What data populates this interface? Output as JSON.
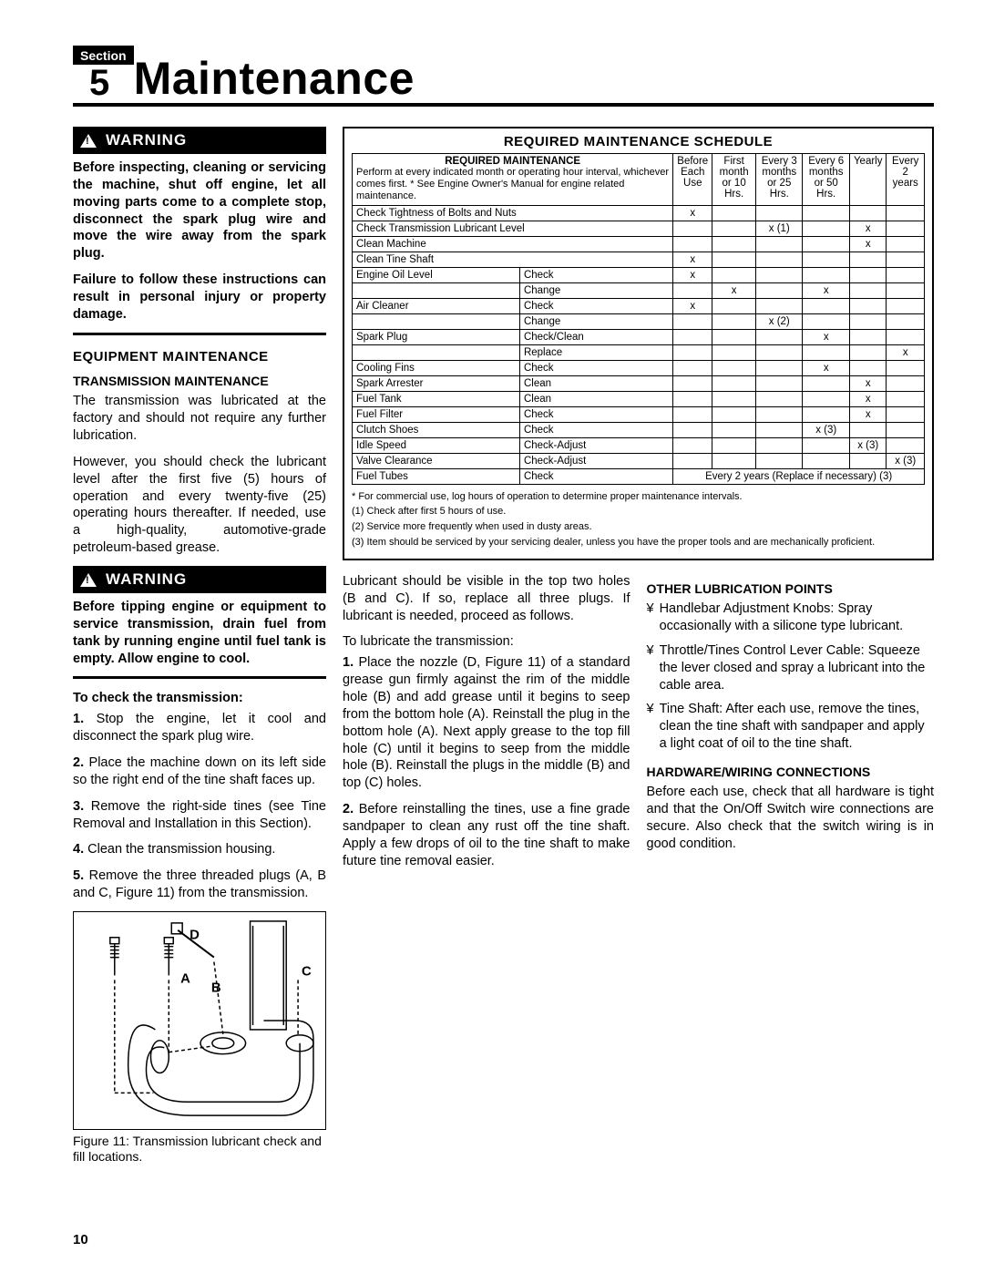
{
  "section": {
    "label": "Section",
    "number": "5",
    "title": "Maintenance"
  },
  "warnings": [
    {
      "label": "WARNING",
      "paras": [
        "Before inspecting, cleaning or servicing the machine, shut off engine, let all moving parts come to a complete stop, disconnect the spark plug wire and move the wire away from the spark plug.",
        "Failure to follow these instructions can result in personal injury or property damage."
      ]
    },
    {
      "label": "WARNING",
      "paras": [
        "Before tipping engine or equipment to service transmission, drain fuel from tank by running engine until fuel tank is empty.  Allow engine to cool."
      ]
    }
  ],
  "equip_h": "EQUIPMENT MAINTENANCE",
  "trans_h": "TRANSMISSION MAINTENANCE",
  "trans_p1": "The transmission was lubricated at the factory and should not require any further lubrication.",
  "trans_p2": "However, you should check the lubricant level after the first five (5) hours of operation and every twenty-five (25) operating hours thereafter.  If needed, use a high-quality, automotive-grade petroleum-based grease.",
  "check_h": "To check the transmission:",
  "steps": [
    {
      "n": "1.",
      "t": "Stop the engine, let it cool and disconnect the spark plug wire."
    },
    {
      "n": "2.",
      "t": "Place the machine down on its left side so the right end of the tine shaft faces up."
    },
    {
      "n": "3.",
      "t": "Remove the right-side tines (see Tine Removal and Installation in this Section)."
    },
    {
      "n": "4.",
      "t": "Clean the transmission housing."
    },
    {
      "n": "5.",
      "t": "Remove the three threaded plugs (A, B and C, Figure 11) from the transmission."
    }
  ],
  "fig_caption": "Figure 11: Transmission lubricant check and fill locations.",
  "fig_labels": {
    "A": "A",
    "B": "B",
    "C": "C",
    "D": "D"
  },
  "schedule": {
    "title": "REQUIRED MAINTENANCE SCHEDULE",
    "req_head": "REQUIRED MAINTENANCE",
    "req_desc": "Perform at every indicated month or operating hour interval, whichever comes first.  * See Engine Owner's Manual for engine related maintenance.",
    "cols": [
      {
        "l1": "Before",
        "l2": "Each",
        "l3": "Use"
      },
      {
        "l1": "First",
        "l2": "month",
        "l3": "or 10 Hrs."
      },
      {
        "l1": "Every 3",
        "l2": "months",
        "l3": "or 25 Hrs."
      },
      {
        "l1": "Every 6",
        "l2": "months",
        "l3": "or 50 Hrs."
      },
      {
        "l1": "Yearly",
        "l2": "",
        "l3": ""
      },
      {
        "l1": "Every",
        "l2": "2 years",
        "l3": ""
      }
    ],
    "rows": [
      {
        "a": "Check Tightness of Bolts and Nuts",
        "b": "",
        "m": [
          "x",
          "",
          "",
          "",
          "",
          ""
        ]
      },
      {
        "a": "Check Transmission Lubricant Level",
        "b": "",
        "m": [
          "",
          "",
          "x (1)",
          "",
          "x",
          ""
        ]
      },
      {
        "a": "Clean Machine",
        "b": "",
        "m": [
          "",
          "",
          "",
          "",
          "x",
          ""
        ]
      },
      {
        "a": "Clean Tine Shaft",
        "b": "",
        "m": [
          "x",
          "",
          "",
          "",
          "",
          ""
        ]
      },
      {
        "a": "Engine Oil Level",
        "b": "Check",
        "m": [
          "x",
          "",
          "",
          "",
          "",
          ""
        ]
      },
      {
        "a": "",
        "b": "Change",
        "m": [
          "",
          "x",
          "",
          "x",
          "",
          ""
        ]
      },
      {
        "a": "Air Cleaner",
        "b": "Check",
        "m": [
          "x",
          "",
          "",
          "",
          "",
          ""
        ]
      },
      {
        "a": "",
        "b": "Change",
        "m": [
          "",
          "",
          "x (2)",
          "",
          "",
          ""
        ]
      },
      {
        "a": "Spark Plug",
        "b": "Check/Clean",
        "m": [
          "",
          "",
          "",
          "x",
          "",
          ""
        ]
      },
      {
        "a": "",
        "b": "Replace",
        "m": [
          "",
          "",
          "",
          "",
          "",
          "x"
        ]
      },
      {
        "a": "Cooling Fins",
        "b": "Check",
        "m": [
          "",
          "",
          "",
          "x",
          "",
          ""
        ]
      },
      {
        "a": "Spark Arrester",
        "b": "Clean",
        "m": [
          "",
          "",
          "",
          "",
          "x",
          ""
        ]
      },
      {
        "a": "Fuel Tank",
        "b": "Clean",
        "m": [
          "",
          "",
          "",
          "",
          "x",
          ""
        ]
      },
      {
        "a": "Fuel Filter",
        "b": "Check",
        "m": [
          "",
          "",
          "",
          "",
          "x",
          ""
        ]
      },
      {
        "a": "Clutch Shoes",
        "b": "Check",
        "m": [
          "",
          "",
          "",
          "x (3)",
          "",
          ""
        ]
      },
      {
        "a": "Idle Speed",
        "b": "Check-Adjust",
        "m": [
          "",
          "",
          "",
          "",
          "x (3)",
          ""
        ]
      },
      {
        "a": "Valve Clearance",
        "b": "Check-Adjust",
        "m": [
          "",
          "",
          "",
          "",
          "",
          "x (3)"
        ]
      }
    ],
    "tubes_row": {
      "a": "Fuel Tubes",
      "b": "Check",
      "span": "Every 2 years (Replace if necessary) (3)"
    },
    "notes": [
      "*  For commercial use, log hours of operation to determine proper maintenance intervals.",
      "(1) Check after first 5 hours of use.",
      "(2) Service more frequently when used in dusty areas.",
      "(3) Item should be serviced by your servicing dealer, unless you have the proper tools and are mechanically proficient."
    ]
  },
  "mid_p": "Lubricant should be visible in the top two holes (B and C).  If so, replace all three plugs. If lubricant is needed, proceed as follows.",
  "lube_h": "To lubricate the transmission:",
  "lube1": "Place the nozzle (D, Figure 11) of a standard grease gun firmly against the rim of the middle hole (B) and add grease until it begins to seep from the bottom hole (A).  Reinstall the plug in the bottom hole (A).  Next apply grease to the top fill hole (C) until it begins to seep from the middle hole (B).  Reinstall the plugs in the middle (B) and top (C) holes.",
  "lube2": "Before reinstalling the tines, use a fine grade sandpaper to clean any rust off the tine shaft.  Apply a few drops of oil to the tine shaft to make future tine removal easier.",
  "other_h": "OTHER LUBRICATION POINTS",
  "other": [
    "Handlebar Adjustment Knobs:  Spray occasionally with a silicone type lubricant.",
    "Throttle/Tines Control Lever Cable:  Squeeze the lever closed and spray a lubricant into the cable area.",
    "Tine Shaft:  After each use, remove the tines, clean the tine shaft with sandpaper and apply a light coat of oil to the tine shaft."
  ],
  "hw_h": "HARDWARE/WIRING CONNECTIONS",
  "hw_p": "Before each use, check that all hardware is tight and that the On/Off Switch wire connections are secure.  Also check that the switch wiring is in good condition.",
  "pagenum": "10"
}
